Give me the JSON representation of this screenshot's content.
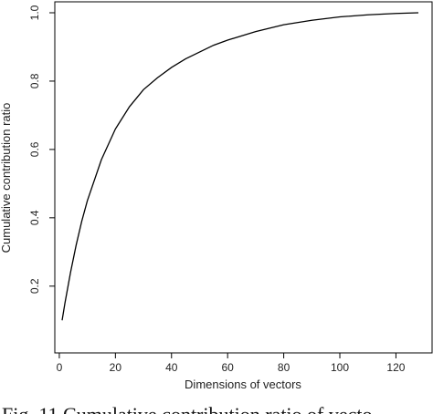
{
  "chart_data": {
    "type": "line",
    "xlabel": "Dimensions of vectors",
    "ylabel": "Cumulative contribution ratio",
    "xlim": [
      1,
      128
    ],
    "ylim": [
      0.09,
      1.0
    ],
    "xticks": [
      0,
      20,
      40,
      60,
      80,
      100,
      120
    ],
    "yticks": [
      0.2,
      0.4,
      0.6,
      0.8,
      1.0
    ],
    "ytick_labels": [
      "0.2",
      "0.4",
      "0.6",
      "0.8",
      "1.0"
    ],
    "grid": false,
    "series": [
      {
        "x": [
          1,
          2,
          4,
          6,
          8,
          10,
          15,
          20,
          25,
          30,
          35,
          40,
          45,
          50,
          55,
          60,
          70,
          80,
          90,
          100,
          110,
          120,
          128
        ],
        "y": [
          0.1,
          0.15,
          0.24,
          0.32,
          0.39,
          0.45,
          0.57,
          0.66,
          0.725,
          0.775,
          0.81,
          0.84,
          0.865,
          0.885,
          0.905,
          0.92,
          0.945,
          0.965,
          0.978,
          0.988,
          0.994,
          0.998,
          1.0
        ]
      }
    ]
  },
  "caption": "Fig. 11   Cumulative contribution ratio of vecto"
}
